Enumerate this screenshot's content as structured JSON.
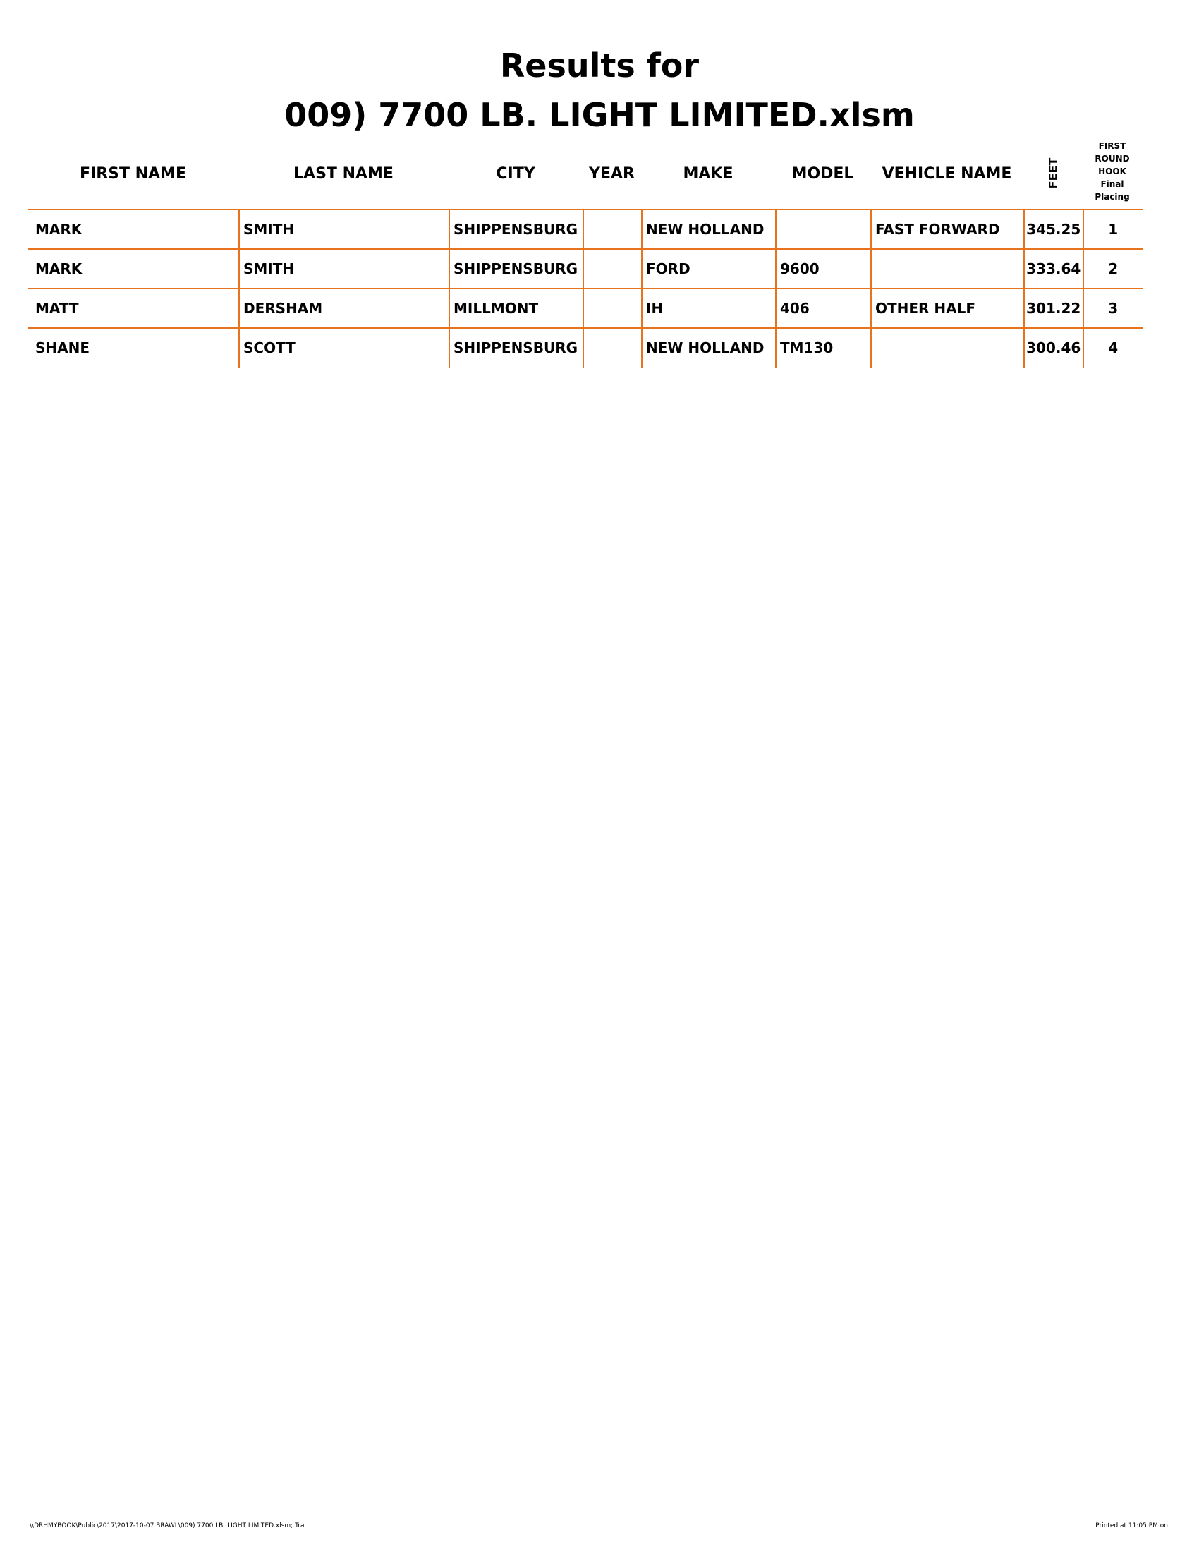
{
  "header": {
    "title_lines": [
      "Results for",
      "009) 7700 LB. LIGHT LIMITED.xlsm"
    ]
  },
  "table": {
    "columns": [
      "FIRST NAME",
      "LAST NAME",
      "CITY",
      "YEAR",
      "MAKE",
      "MODEL",
      "VEHICLE NAME",
      "FEET",
      [
        "FIRST",
        "ROUND",
        "HOOK",
        "Final",
        "Placing"
      ]
    ],
    "rows": [
      [
        "MARK",
        "SMITH",
        "SHIPPENSBURG",
        null,
        "NEW HOLLAND",
        null,
        "FAST FORWARD",
        "345.25",
        "1"
      ],
      [
        "MARK",
        "SMITH",
        "SHIPPENSBURG",
        null,
        "FORD",
        "9600",
        null,
        "333.64",
        "2"
      ],
      [
        "MATT",
        "DERSHAM",
        "MILLMONT",
        null,
        "IH",
        "406",
        "OTHER HALF",
        "301.22",
        "3"
      ],
      [
        "SHANE",
        "SCOTT",
        "SHIPPENSBURG",
        null,
        "NEW HOLLAND",
        "TM130",
        null,
        "300.46",
        "4"
      ]
    ]
  },
  "footer": {
    "left": "\\\\DRHMYBOOK\\Public\\2017\\2017-10-07 BRAWL\\009) 7700 LB. LIGHT LIMITED.xlsm;  Tra",
    "right": "Printed at 11:05 PM on"
  }
}
